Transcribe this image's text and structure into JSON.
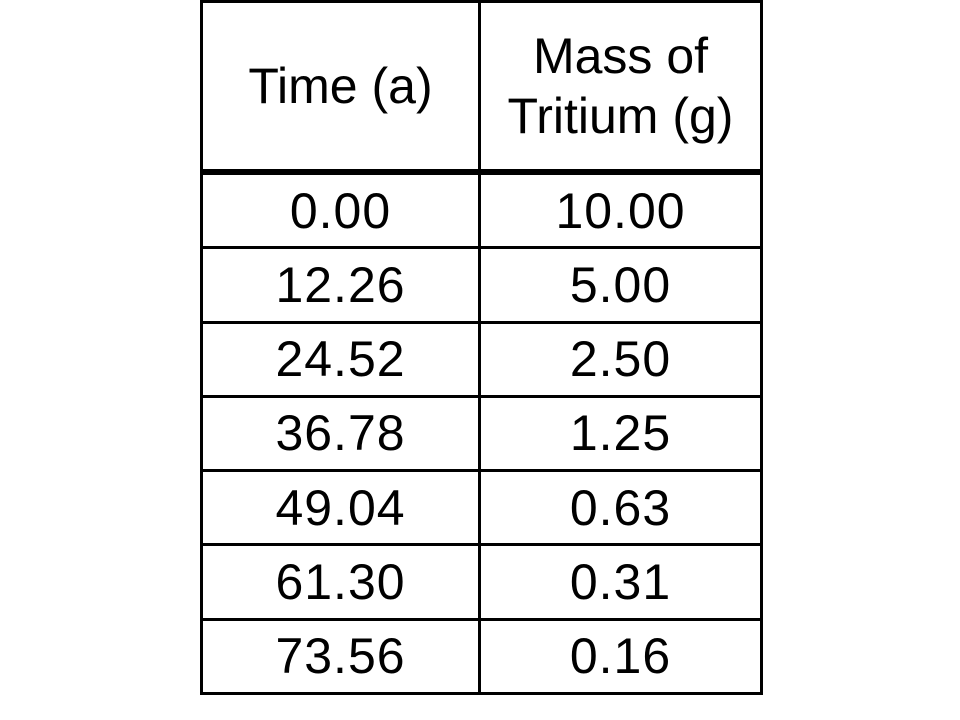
{
  "chart_data": {
    "type": "table",
    "columns": [
      "Time (a)",
      "Mass of Tritium (g)"
    ],
    "header": {
      "time": "Time (a)",
      "mass_line1": "Mass of",
      "mass_line2": "Tritium (g)"
    },
    "rows": [
      {
        "time": "0.00",
        "mass": "10.00"
      },
      {
        "time": "12.26",
        "mass": "5.00"
      },
      {
        "time": "24.52",
        "mass": "2.50"
      },
      {
        "time": "36.78",
        "mass": "1.25"
      },
      {
        "time": "49.04",
        "mass": "0.63"
      },
      {
        "time": "61.30",
        "mass": "0.31"
      },
      {
        "time": "73.56",
        "mass": "0.16"
      }
    ]
  }
}
